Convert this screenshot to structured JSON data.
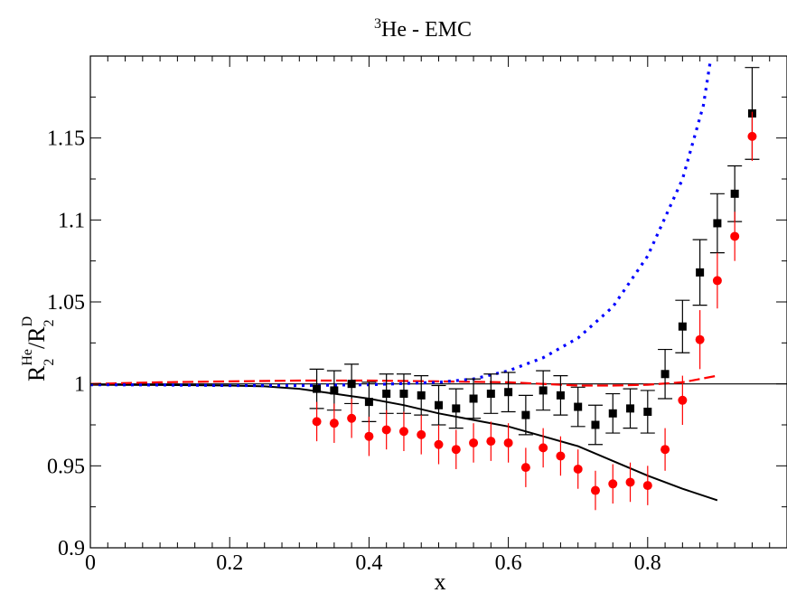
{
  "chart_data": {
    "type": "scatter",
    "title": {
      "sup": "3",
      "main": "He - EMC"
    },
    "xlabel": "x",
    "ylabel": {
      "base1": "R",
      "sub1": "2",
      "sup1": "He",
      "slash": "/",
      "base2": "R",
      "sub2": "2",
      "sup2": "D"
    },
    "xlim": [
      0,
      1.0
    ],
    "ylim": [
      0.9,
      1.2
    ],
    "x_ticks": [
      0,
      0.2,
      0.4,
      0.6,
      0.8
    ],
    "x_tick_labels": [
      "0",
      "0.2",
      "0.4",
      "0.6",
      "0.8"
    ],
    "y_ticks": [
      0.9,
      0.95,
      1.0,
      1.05,
      1.1,
      1.15
    ],
    "y_tick_labels": [
      "0.9",
      "0.95",
      "1",
      "1.05",
      "1.1",
      "1.15"
    ],
    "grid": false,
    "legend": "none",
    "reference_line": {
      "y": 1.0,
      "color": "#000000"
    },
    "series": [
      {
        "kind": "points",
        "marker": "square",
        "color": "#000000",
        "x": [
          0.325,
          0.35,
          0.375,
          0.4,
          0.425,
          0.45,
          0.475,
          0.5,
          0.525,
          0.55,
          0.575,
          0.6,
          0.625,
          0.65,
          0.675,
          0.7,
          0.725,
          0.75,
          0.775,
          0.8,
          0.825,
          0.85,
          0.875,
          0.9,
          0.925,
          0.95
        ],
        "y": [
          0.997,
          0.996,
          1.0,
          0.989,
          0.994,
          0.994,
          0.993,
          0.987,
          0.985,
          0.991,
          0.994,
          0.995,
          0.981,
          0.996,
          0.993,
          0.986,
          0.975,
          0.982,
          0.985,
          0.983,
          1.006,
          1.035,
          1.068,
          1.098,
          1.116,
          1.165
        ],
        "err": [
          0.012,
          0.012,
          0.012,
          0.012,
          0.012,
          0.012,
          0.012,
          0.012,
          0.012,
          0.012,
          0.012,
          0.012,
          0.012,
          0.012,
          0.012,
          0.012,
          0.012,
          0.012,
          0.012,
          0.013,
          0.015,
          0.016,
          0.02,
          0.018,
          0.017,
          0.028
        ]
      },
      {
        "kind": "points",
        "marker": "circle",
        "color": "#ff0000",
        "x": [
          0.325,
          0.35,
          0.375,
          0.4,
          0.425,
          0.45,
          0.475,
          0.5,
          0.525,
          0.55,
          0.575,
          0.6,
          0.625,
          0.65,
          0.675,
          0.7,
          0.725,
          0.75,
          0.775,
          0.8,
          0.825,
          0.85,
          0.875,
          0.9,
          0.925,
          0.95
        ],
        "y": [
          0.977,
          0.976,
          0.979,
          0.968,
          0.972,
          0.971,
          0.969,
          0.963,
          0.96,
          0.964,
          0.965,
          0.964,
          0.949,
          0.961,
          0.956,
          0.948,
          0.935,
          0.939,
          0.94,
          0.938,
          0.96,
          0.99,
          1.027,
          1.063,
          1.09,
          1.151
        ],
        "err": [
          0.012,
          0.012,
          0.012,
          0.012,
          0.012,
          0.012,
          0.012,
          0.012,
          0.012,
          0.012,
          0.012,
          0.012,
          0.012,
          0.012,
          0.012,
          0.012,
          0.012,
          0.012,
          0.012,
          0.012,
          0.013,
          0.015,
          0.018,
          0.017,
          0.015,
          0.015
        ]
      },
      {
        "kind": "line",
        "style": "solid",
        "color": "#000000",
        "x": [
          0.0,
          0.1,
          0.15,
          0.2,
          0.25,
          0.3,
          0.35,
          0.4,
          0.45,
          0.5,
          0.55,
          0.6,
          0.65,
          0.7,
          0.75,
          0.8,
          0.85,
          0.9
        ],
        "y": [
          0.9995,
          0.9993,
          0.9992,
          0.999,
          0.9985,
          0.997,
          0.994,
          0.991,
          0.987,
          0.982,
          0.978,
          0.974,
          0.968,
          0.962,
          0.953,
          0.944,
          0.936,
          0.929
        ]
      },
      {
        "kind": "line",
        "style": "dashed",
        "color": "#ff0000",
        "x": [
          0.0,
          0.1,
          0.2,
          0.3,
          0.4,
          0.5,
          0.6,
          0.7,
          0.75,
          0.8,
          0.85,
          0.9
        ],
        "y": [
          1.0,
          1.001,
          1.0015,
          1.002,
          1.002,
          1.0015,
          1.001,
          0.999,
          0.999,
          0.9995,
          1.001,
          1.005
        ]
      },
      {
        "kind": "line",
        "style": "dotted",
        "color": "#0000ff",
        "x": [
          0.0,
          0.1,
          0.2,
          0.3,
          0.4,
          0.5,
          0.55,
          0.6,
          0.65,
          0.7,
          0.75,
          0.8,
          0.85,
          0.88,
          0.89
        ],
        "y": [
          0.9995,
          0.9993,
          0.999,
          0.999,
          0.9995,
          1.001,
          1.003,
          1.008,
          1.016,
          1.028,
          1.047,
          1.078,
          1.125,
          1.17,
          1.197
        ]
      }
    ]
  }
}
